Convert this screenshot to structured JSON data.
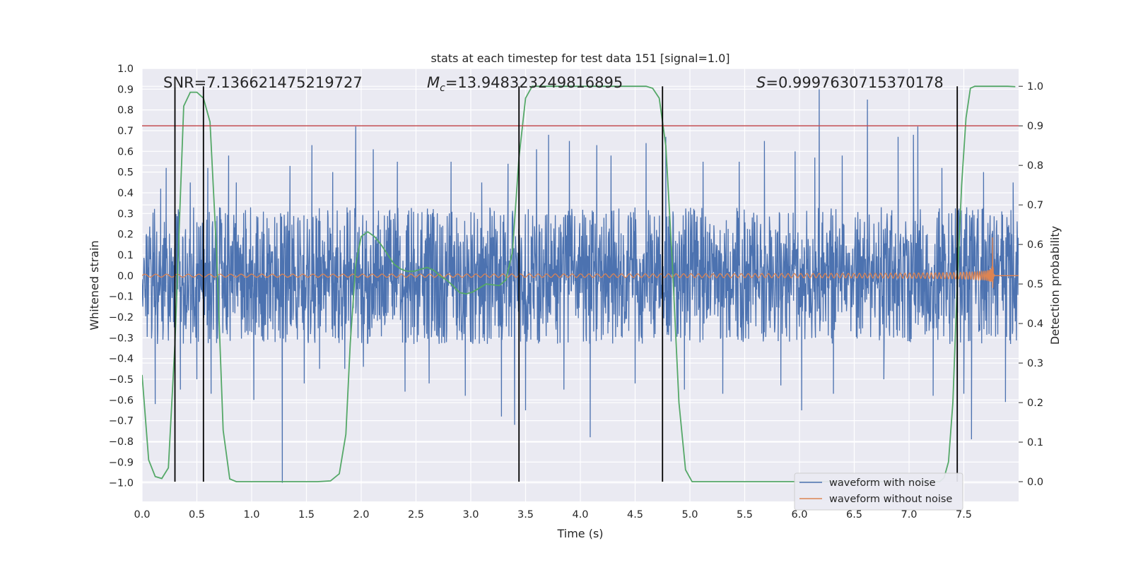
{
  "chart_data": {
    "type": "line",
    "title": "stats at each timestep for test data 151 [signal=1.0]",
    "xlabel": "Time (s)",
    "ylabel": "Whitened strain",
    "y2label": "Detection probability",
    "xlim": [
      0.0,
      8.0
    ],
    "ylim": [
      -1.09,
      1.0
    ],
    "y2lim": [
      -0.05,
      1.045
    ],
    "xticks": [
      "0.0",
      "0.5",
      "1.0",
      "1.5",
      "2.0",
      "2.5",
      "3.0",
      "3.5",
      "4.0",
      "4.5",
      "5.0",
      "5.5",
      "6.0",
      "6.5",
      "7.0",
      "7.5"
    ],
    "yticks": [
      "1.0",
      "0.9",
      "0.8",
      "0.7",
      "0.6",
      "0.5",
      "0.4",
      "0.3",
      "0.2",
      "0.1",
      "0.0",
      "−0.1",
      "−0.2",
      "−0.3",
      "−0.4",
      "−0.5",
      "−0.6",
      "−0.7",
      "−0.8",
      "−0.9",
      "−1.0"
    ],
    "y2ticks": [
      "1.0",
      "0.9",
      "0.8",
      "0.7",
      "0.6",
      "0.5",
      "0.4",
      "0.3",
      "0.2",
      "0.1",
      "0.0"
    ],
    "grid": true,
    "legend_position": "lower-right",
    "annotations": {
      "snr": "SNR=7.136621475219727",
      "mc_symbol": "M",
      "mc_subscript": "c",
      "mc_value": "=13.948323249816895",
      "s_symbol": "S",
      "s_value": "=0.9997630715370178"
    },
    "threshold": {
      "y2": 0.9,
      "color": "#c44e52"
    },
    "vertical_markers_x": [
      0.3,
      0.56,
      3.44,
      4.75,
      7.44
    ],
    "series": [
      {
        "name": "waveform with noise",
        "color": "#4c72b0",
        "axis": "left",
        "kind": "noise",
        "core_sigma": 0.155,
        "core_clip": 0.33,
        "spikes": [
          [
            0.12,
            -0.62
          ],
          [
            0.17,
            0.42
          ],
          [
            0.22,
            0.52
          ],
          [
            0.35,
            -0.55
          ],
          [
            0.44,
            0.45
          ],
          [
            0.5,
            -0.5
          ],
          [
            0.6,
            0.52
          ],
          [
            0.63,
            -0.57
          ],
          [
            0.79,
            0.58
          ],
          [
            0.86,
            0.45
          ],
          [
            1.02,
            -0.6
          ],
          [
            1.28,
            -1.0
          ],
          [
            1.35,
            0.53
          ],
          [
            1.48,
            -0.52
          ],
          [
            1.55,
            0.63
          ],
          [
            1.62,
            -0.45
          ],
          [
            1.74,
            0.5
          ],
          [
            1.85,
            -0.45
          ],
          [
            1.95,
            0.72
          ],
          [
            2.02,
            -0.44
          ],
          [
            2.11,
            0.61
          ],
          [
            2.33,
            0.55
          ],
          [
            2.4,
            -0.56
          ],
          [
            2.62,
            -0.52
          ],
          [
            2.82,
            0.55
          ],
          [
            2.95,
            -0.58
          ],
          [
            3.1,
            0.45
          ],
          [
            3.28,
            -0.68
          ],
          [
            3.34,
            0.54
          ],
          [
            3.4,
            -0.72
          ],
          [
            3.5,
            -0.65
          ],
          [
            3.6,
            0.61
          ],
          [
            3.71,
            0.68
          ],
          [
            3.85,
            -0.55
          ],
          [
            3.9,
            0.65
          ],
          [
            4.09,
            -0.78
          ],
          [
            4.15,
            0.63
          ],
          [
            4.28,
            0.58
          ],
          [
            4.5,
            -0.52
          ],
          [
            4.6,
            0.64
          ],
          [
            4.78,
            0.67
          ],
          [
            4.95,
            -0.55
          ],
          [
            5.12,
            0.55
          ],
          [
            5.3,
            -0.57
          ],
          [
            5.45,
            0.55
          ],
          [
            5.68,
            0.65
          ],
          [
            5.83,
            -0.53
          ],
          [
            5.96,
            0.6
          ],
          [
            6.02,
            -0.65
          ],
          [
            6.14,
            0.57
          ],
          [
            6.18,
            0.9
          ],
          [
            6.31,
            -0.57
          ],
          [
            6.39,
            0.58
          ],
          [
            6.62,
            0.85
          ],
          [
            6.77,
            -0.5
          ],
          [
            6.9,
            0.67
          ],
          [
            7.04,
            0.68
          ],
          [
            7.08,
            0.72
          ],
          [
            7.22,
            -0.58
          ],
          [
            7.3,
            0.52
          ],
          [
            7.5,
            -0.57
          ],
          [
            7.57,
            -0.79
          ],
          [
            7.68,
            0.5
          ],
          [
            7.88,
            -0.61
          ],
          [
            7.95,
            0.45
          ]
        ]
      },
      {
        "name": "waveform without noise",
        "color": "#dd8452",
        "axis": "left",
        "kind": "chirp",
        "t_merge": 7.76,
        "peak_amplitude": 0.3,
        "ringdown_end": 7.78
      },
      {
        "name": "detection probability",
        "color": "#55a868",
        "axis": "right",
        "kind": "line",
        "x": [
          0.0,
          0.06,
          0.12,
          0.18,
          0.24,
          0.3,
          0.38,
          0.44,
          0.5,
          0.56,
          0.62,
          0.68,
          0.74,
          0.8,
          0.86,
          0.92,
          1.0,
          1.3,
          1.6,
          1.72,
          1.8,
          1.86,
          1.9,
          1.95,
          2.0,
          2.06,
          2.12,
          2.18,
          2.24,
          2.3,
          2.36,
          2.42,
          2.48,
          2.54,
          2.6,
          2.66,
          2.72,
          2.78,
          2.84,
          2.9,
          2.96,
          3.02,
          3.08,
          3.14,
          3.2,
          3.26,
          3.32,
          3.38,
          3.44,
          3.5,
          3.56,
          3.62,
          3.7,
          3.8,
          4.0,
          4.3,
          4.6,
          4.66,
          4.72,
          4.78,
          4.84,
          4.9,
          4.96,
          5.02,
          5.1,
          5.4,
          6.0,
          6.5,
          7.0,
          7.28,
          7.32,
          7.36,
          7.4,
          7.44,
          7.48,
          7.52,
          7.56,
          7.6,
          7.7,
          7.8,
          7.9,
          7.97
        ],
        "y": [
          0.27,
          0.055,
          0.013,
          0.008,
          0.035,
          0.35,
          0.95,
          0.985,
          0.985,
          0.97,
          0.91,
          0.58,
          0.13,
          0.007,
          0.0,
          0.0,
          0.0,
          0.0,
          0.0,
          0.002,
          0.02,
          0.12,
          0.35,
          0.55,
          0.62,
          0.632,
          0.62,
          0.6,
          0.575,
          0.55,
          0.538,
          0.532,
          0.532,
          0.537,
          0.542,
          0.535,
          0.52,
          0.51,
          0.495,
          0.478,
          0.475,
          0.48,
          0.49,
          0.5,
          0.498,
          0.496,
          0.51,
          0.58,
          0.82,
          0.97,
          1.0,
          1.0,
          1.0,
          1.0,
          1.0,
          1.0,
          1.0,
          0.995,
          0.97,
          0.85,
          0.55,
          0.2,
          0.03,
          0.0,
          0.0,
          0.0,
          0.0,
          0.0,
          0.0,
          0.0,
          0.01,
          0.05,
          0.2,
          0.5,
          0.75,
          0.92,
          0.995,
          1.0,
          1.0,
          1.0,
          1.0,
          0.999
        ]
      }
    ]
  }
}
